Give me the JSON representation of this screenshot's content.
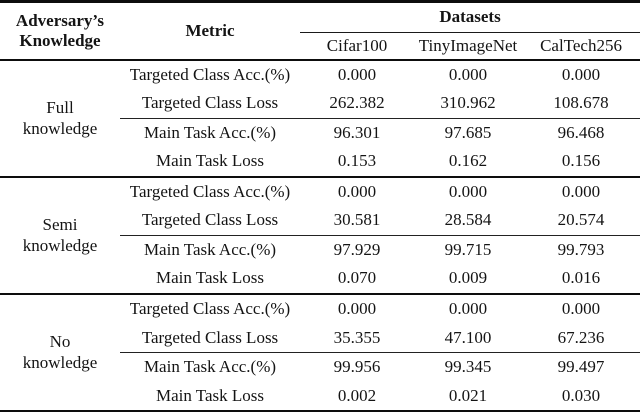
{
  "header": {
    "knowledge_line1": "Adversary’s",
    "knowledge_line2": "Knowledge",
    "metric": "Metric",
    "datasets": "Datasets",
    "dataset_columns": [
      "Cifar100",
      "TinyImageNet",
      "CalTech256"
    ]
  },
  "groups": [
    {
      "label_line1": "Full",
      "label_line2": "knowledge",
      "rows": [
        {
          "metric": "Targeted Class Acc.(%)",
          "values": [
            "0.000",
            "0.000",
            "0.000"
          ]
        },
        {
          "metric": "Targeted Class Loss",
          "values": [
            "262.382",
            "310.962",
            "108.678"
          ]
        },
        {
          "metric": "Main Task Acc.(%)",
          "values": [
            "96.301",
            "97.685",
            "96.468"
          ]
        },
        {
          "metric": "Main Task Loss",
          "values": [
            "0.153",
            "0.162",
            "0.156"
          ]
        }
      ]
    },
    {
      "label_line1": "Semi",
      "label_line2": "knowledge",
      "rows": [
        {
          "metric": "Targeted Class Acc.(%)",
          "values": [
            "0.000",
            "0.000",
            "0.000"
          ]
        },
        {
          "metric": "Targeted Class Loss",
          "values": [
            "30.581",
            "28.584",
            "20.574"
          ]
        },
        {
          "metric": "Main Task Acc.(%)",
          "values": [
            "97.929",
            "99.715",
            "99.793"
          ]
        },
        {
          "metric": "Main Task Loss",
          "values": [
            "0.070",
            "0.009",
            "0.016"
          ]
        }
      ]
    },
    {
      "label_line1": "No",
      "label_line2": "knowledge",
      "rows": [
        {
          "metric": "Targeted Class Acc.(%)",
          "values": [
            "0.000",
            "0.000",
            "0.000"
          ]
        },
        {
          "metric": "Targeted Class Loss",
          "values": [
            "35.355",
            "47.100",
            "67.236"
          ]
        },
        {
          "metric": "Main Task Acc.(%)",
          "values": [
            "99.956",
            "99.345",
            "99.497"
          ]
        },
        {
          "metric": "Main Task Loss",
          "values": [
            "0.002",
            "0.021",
            "0.030"
          ]
        }
      ]
    }
  ]
}
